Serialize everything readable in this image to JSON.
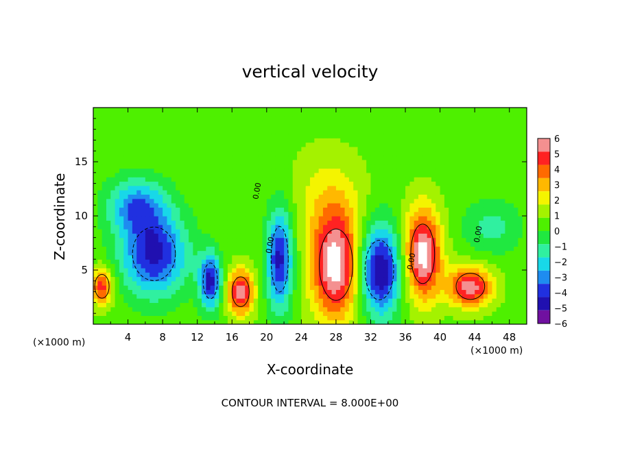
{
  "chart_data": {
    "type": "heatmap",
    "title": "vertical velocity",
    "xlabel": "X-coordinate",
    "ylabel": "Z-coordinate",
    "x_unit_label": "(×1000 m)",
    "x_unit_label_right": "(×1000 m)",
    "footer": "CONTOUR INTERVAL = 8.000E+00",
    "xlim": [
      0,
      50
    ],
    "ylim": [
      0,
      20
    ],
    "x_ticks": [
      4,
      8,
      12,
      16,
      20,
      24,
      28,
      32,
      36,
      40,
      44,
      48
    ],
    "y_ticks": [
      5,
      10,
      15
    ],
    "colorbar": {
      "labels": [
        "6",
        "5",
        "4",
        "3",
        "2",
        "1",
        "0",
        "−1",
        "−2",
        "−3",
        "−4",
        "−5",
        "−6"
      ],
      "colors": [
        "#f49090",
        "#ff2222",
        "#ff6a00",
        "#ffb800",
        "#f4f400",
        "#a4f200",
        "#4ef000",
        "#20e840",
        "#30f0a0",
        "#18d8e8",
        "#1e8cf0",
        "#2030e0",
        "#2010b0",
        "#7010a0"
      ],
      "values": [
        6,
        5,
        4,
        3,
        2,
        1,
        0,
        -1,
        -2,
        -3,
        -4,
        -5,
        -6
      ]
    },
    "contour_labels": [
      "0.00",
      "0.00",
      "0.00",
      "0.00"
    ],
    "features": [
      {
        "kind": "updraft",
        "x": 1,
        "z": 3.5,
        "rx": 1.5,
        "rz": 2,
        "peak": 5
      },
      {
        "kind": "downdraft",
        "x": 7,
        "z": 6.5,
        "rx": 4.5,
        "rz": 4.5,
        "peak": -6
      },
      {
        "kind": "downdraft",
        "x": 5,
        "z": 11,
        "rx": 4,
        "rz": 3,
        "peak": -4
      },
      {
        "kind": "downdraft",
        "x": 13.5,
        "z": 4,
        "rx": 1.5,
        "rz": 3,
        "peak": -6
      },
      {
        "kind": "updraft",
        "x": 17,
        "z": 3,
        "rx": 1.8,
        "rz": 2.5,
        "peak": 6
      },
      {
        "kind": "downdraft",
        "x": 21.5,
        "z": 6,
        "rx": 1.8,
        "rz": 5.5,
        "peak": -6
      },
      {
        "kind": "updraft",
        "x": 28,
        "z": 5.5,
        "rx": 3.5,
        "rz": 6,
        "peak": 7
      },
      {
        "kind": "downdraft",
        "x": 33,
        "z": 5,
        "rx": 3,
        "rz": 5,
        "peak": -7
      },
      {
        "kind": "updraft",
        "x": 38,
        "z": 6.5,
        "rx": 2.5,
        "rz": 5,
        "peak": 7
      },
      {
        "kind": "updraft",
        "x": 43.5,
        "z": 3.5,
        "rx": 3,
        "rz": 2.2,
        "peak": 6
      },
      {
        "kind": "downdraft",
        "x": 46,
        "z": 9,
        "rx": 4,
        "rz": 3,
        "peak": -2
      },
      {
        "kind": "updraft",
        "x": 27,
        "z": 12,
        "rx": 5,
        "rz": 5,
        "peak": 1.5
      }
    ]
  }
}
